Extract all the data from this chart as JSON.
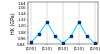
{
  "x_labels": [
    "[100]",
    "[110]",
    "[010]",
    "[110]",
    "[100]"
  ],
  "x_values": [
    0,
    1,
    2,
    3,
    4
  ],
  "data_points_x": [
    0,
    0.5,
    1.0,
    1.5,
    2.0,
    2.5,
    3.0,
    3.5,
    4.0
  ],
  "data_points_y": [
    0.88,
    1.05,
    1.28,
    1.0,
    0.86,
    1.0,
    1.28,
    1.0,
    0.86
  ],
  "line_color": "#00cfff",
  "marker_color": "#003080",
  "marker_style": "s",
  "marker_size": 1.5,
  "ylabel": "HK (GPa)",
  "ylim": [
    0.84,
    1.68
  ],
  "yticks": [
    0.84,
    0.96,
    1.08,
    1.2,
    1.32,
    1.44,
    1.56,
    1.64
  ],
  "background_color": "#ffffff",
  "grid_color": "#bbbbbb",
  "label_fontsize": 3.5,
  "tick_fontsize": 2.8,
  "linewidth": 0.7
}
